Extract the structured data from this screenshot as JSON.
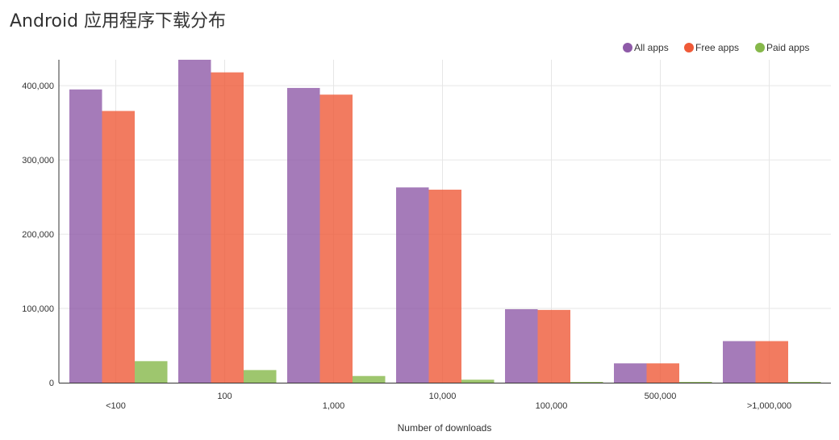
{
  "chart_data": {
    "type": "bar",
    "title": "Android 应用程序下载分布",
    "xlabel": "Number of downloads",
    "ylabel": "",
    "categories": [
      "<100",
      "100",
      "1,000",
      "10,000",
      "100,000",
      "500,000",
      ">1,000,000"
    ],
    "series": [
      {
        "name": "All apps",
        "color": "#8e5aa8",
        "values": [
          395000,
          435000,
          397000,
          263000,
          99000,
          26000,
          56000
        ]
      },
      {
        "name": "Free apps",
        "color": "#ef5a38",
        "values": [
          366000,
          418000,
          388000,
          260000,
          98000,
          26000,
          56000
        ]
      },
      {
        "name": "Paid apps",
        "color": "#86b84a",
        "values": [
          29000,
          17000,
          9000,
          4000,
          1000,
          500,
          300
        ]
      }
    ],
    "ylim": [
      0,
      435000
    ],
    "yticks": [
      0,
      100000,
      200000,
      300000,
      400000
    ],
    "ytick_labels": [
      "0",
      "100,000",
      "200,000",
      "300,000",
      "400,000"
    ],
    "grid": true,
    "legend_position": "top-right"
  }
}
